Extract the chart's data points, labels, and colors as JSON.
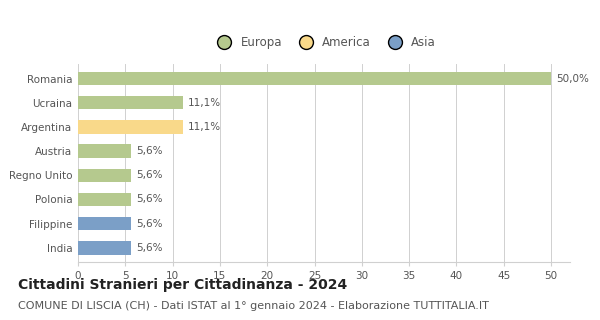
{
  "categories": [
    "Romania",
    "Ucraina",
    "Argentina",
    "Austria",
    "Regno Unito",
    "Polonia",
    "Filippine",
    "India"
  ],
  "values": [
    50.0,
    11.1,
    11.1,
    5.6,
    5.6,
    5.6,
    5.6,
    5.6
  ],
  "labels": [
    "50,0%",
    "11,1%",
    "11,1%",
    "5,6%",
    "5,6%",
    "5,6%",
    "5,6%",
    "5,6%"
  ],
  "colors": [
    "#b5c98e",
    "#b5c98e",
    "#f9d98a",
    "#b5c98e",
    "#b5c98e",
    "#b5c98e",
    "#7b9fc7",
    "#7b9fc7"
  ],
  "legend_labels": [
    "Europa",
    "America",
    "Asia"
  ],
  "legend_colors": [
    "#b5c98e",
    "#f9d98a",
    "#7b9fc7"
  ],
  "title": "Cittadini Stranieri per Cittadinanza - 2024",
  "subtitle": "COMUNE DI LISCIA (CH) - Dati ISTAT al 1° gennaio 2024 - Elaborazione TUTTITALIA.IT",
  "xlim": [
    0,
    52
  ],
  "xticks": [
    0,
    5,
    10,
    15,
    20,
    25,
    30,
    35,
    40,
    45,
    50
  ],
  "background_color": "#ffffff",
  "grid_color": "#d0d0d0",
  "bar_height": 0.55,
  "title_fontsize": 10,
  "subtitle_fontsize": 8,
  "label_fontsize": 7.5,
  "tick_fontsize": 7.5,
  "legend_fontsize": 8.5,
  "text_color": "#555555"
}
